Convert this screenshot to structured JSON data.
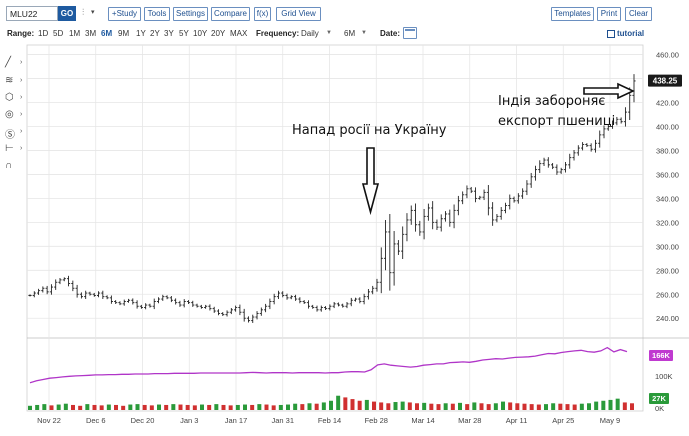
{
  "toolbar": {
    "symbol": "MLU22",
    "go_label": "GO",
    "study_label": "+Study",
    "tools_label": "Tools",
    "settings_label": "Settings",
    "compare_label": "Compare",
    "fx_label": "f(x)",
    "grid_label": "Grid View",
    "templates_label": "Templates",
    "print_label": "Print",
    "clear_label": "Clear"
  },
  "range_bar": {
    "range_label": "Range:",
    "ranges": [
      "1D",
      "5D",
      "1M",
      "3M",
      "6M",
      "9M",
      "1Y",
      "2Y",
      "3Y",
      "5Y",
      "10Y",
      "20Y",
      "MAX"
    ],
    "active_range": "6M",
    "frequency_label": "Frequency:",
    "frequency_value": "Daily",
    "period_value": "6M",
    "date_label": "Date:",
    "tutorial_label": "tutorial"
  },
  "colors": {
    "accent": "#1e5aa0",
    "price_bar": "#222222",
    "open_interest": "#b035c8",
    "volume_up": "#2a9a3a",
    "volume_down": "#d03030",
    "grid": "#e6e6e6",
    "tag_bg": "#1a1a1a",
    "oi_tag_bg": "#c03ad0",
    "vol_tag_bg": "#2a9a3a"
  },
  "annotations": {
    "invasion": "Напад росії на Україну",
    "ban_line1": "Індія забороняє",
    "ban_line2": "експорт пшениці"
  },
  "chart_data": {
    "type": "line",
    "price_axis": {
      "ticks": [
        240,
        260,
        280,
        300,
        320,
        340,
        360,
        380,
        400,
        420,
        440,
        460
      ],
      "ylim": [
        226,
        468
      ]
    },
    "volume_axis": {
      "ticks": [
        "100K",
        "0K"
      ]
    },
    "last_price": "438.25",
    "last_open_interest": "166K",
    "last_volume": "27K",
    "x_ticks": [
      "Nov 22",
      "Dec 6",
      "Dec 20",
      "Jan 3",
      "Jan 17",
      "Jan 31",
      "Feb 14",
      "Feb 28",
      "Mar 14",
      "Mar 28",
      "Apr 11",
      "Apr 25",
      "May 9"
    ],
    "price_series": [
      259,
      261,
      263,
      265,
      262,
      266,
      270,
      272,
      273,
      269,
      265,
      260,
      258,
      261,
      260,
      259,
      261,
      258,
      257,
      254,
      253,
      252,
      254,
      255,
      253,
      250,
      249,
      251,
      250,
      254,
      256,
      258,
      257,
      255,
      253,
      251,
      254,
      253,
      251,
      250,
      249,
      250,
      248,
      246,
      244,
      243,
      245,
      247,
      249,
      245,
      240,
      238,
      241,
      244,
      247,
      250,
      254,
      258,
      261,
      259,
      257,
      258,
      256,
      254,
      253,
      250,
      249,
      247,
      249,
      248,
      250,
      252,
      251,
      250,
      252,
      255,
      256,
      254,
      258,
      262,
      265,
      270,
      290,
      312,
      278,
      302,
      296,
      310,
      322,
      330,
      318,
      312,
      325,
      332,
      320,
      316,
      323,
      327,
      320,
      330,
      338,
      343,
      348,
      346,
      340,
      341,
      345,
      332,
      322,
      325,
      330,
      334,
      340,
      338,
      342,
      346,
      352,
      358,
      364,
      369,
      372,
      368,
      366,
      362,
      364,
      368,
      374,
      378,
      382,
      385,
      384,
      381,
      386,
      393,
      398,
      400,
      403,
      406,
      404,
      412,
      426,
      438
    ],
    "open_interest_series": [
      70,
      76,
      80,
      84,
      86,
      88,
      90,
      91,
      92,
      93,
      94,
      94,
      95,
      95,
      96,
      96,
      97,
      97,
      97,
      98,
      98,
      98,
      99,
      99,
      99,
      99,
      100,
      100,
      100,
      100,
      100,
      100,
      100,
      101,
      102,
      101,
      100,
      101,
      101,
      101,
      100,
      101,
      101,
      101,
      101,
      100,
      101,
      101,
      103,
      104,
      104,
      103,
      110,
      125,
      128,
      124,
      122,
      120,
      118,
      120,
      124,
      126,
      128,
      128,
      132,
      133,
      134,
      133,
      136,
      140,
      142,
      144,
      143,
      146,
      148,
      149,
      150,
      152,
      156,
      160,
      159,
      163,
      166,
      168,
      170,
      166,
      164,
      168,
      178,
      165,
      172,
      166
    ],
    "volume_series": [
      10,
      12,
      14,
      11,
      13,
      15,
      12,
      10,
      14,
      12,
      11,
      13,
      12,
      10,
      13,
      14,
      12,
      11,
      13,
      12,
      14,
      13,
      12,
      11,
      13,
      12,
      14,
      12,
      11,
      12,
      13,
      12,
      14,
      13,
      11,
      12,
      13,
      15,
      14,
      16,
      15,
      18,
      22,
      34,
      30,
      26,
      22,
      24,
      20,
      18,
      16,
      19,
      20,
      18,
      16,
      17,
      15,
      14,
      16,
      15,
      17,
      14,
      18,
      16,
      14,
      16,
      20,
      18,
      16,
      15,
      14,
      13,
      14,
      16,
      15,
      14,
      13,
      15,
      16,
      20,
      22,
      24,
      27,
      18,
      16
    ]
  }
}
